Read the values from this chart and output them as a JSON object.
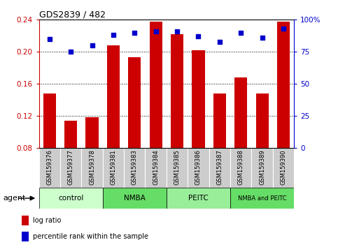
{
  "title": "GDS2839 / 482",
  "categories": [
    "GSM159376",
    "GSM159377",
    "GSM159378",
    "GSM159381",
    "GSM159383",
    "GSM159384",
    "GSM159385",
    "GSM159386",
    "GSM159387",
    "GSM159388",
    "GSM159389",
    "GSM159390"
  ],
  "log_ratio": [
    0.148,
    0.114,
    0.119,
    0.208,
    0.193,
    0.238,
    0.222,
    0.202,
    0.148,
    0.168,
    0.148,
    0.238
  ],
  "percentile_rank": [
    85,
    75,
    80,
    88,
    90,
    91,
    91,
    87,
    83,
    90,
    86,
    93
  ],
  "bar_color": "#cc0000",
  "dot_color": "#0000cc",
  "ylim_left": [
    0.08,
    0.24
  ],
  "ylim_right": [
    0,
    100
  ],
  "yticks_left": [
    0.08,
    0.12,
    0.16,
    0.2,
    0.24
  ],
  "yticks_right": [
    0,
    25,
    50,
    75,
    100
  ],
  "groups": [
    {
      "label": "control",
      "start": 0,
      "end": 3,
      "color": "#ccffcc"
    },
    {
      "label": "NMBA",
      "start": 3,
      "end": 6,
      "color": "#66dd66"
    },
    {
      "label": "PEITC",
      "start": 6,
      "end": 9,
      "color": "#99ee99"
    },
    {
      "label": "NMBA and PEITC",
      "start": 9,
      "end": 12,
      "color": "#66dd66"
    }
  ],
  "xlabel_agent": "agent",
  "legend_items": [
    {
      "label": "log ratio",
      "color": "#cc0000"
    },
    {
      "label": "percentile rank within the sample",
      "color": "#0000cc"
    }
  ],
  "title_color": "black",
  "left_axis_color": "#cc0000",
  "right_axis_color": "#0000cc",
  "sample_bg_color": "#cccccc",
  "bar_width": 0.6
}
